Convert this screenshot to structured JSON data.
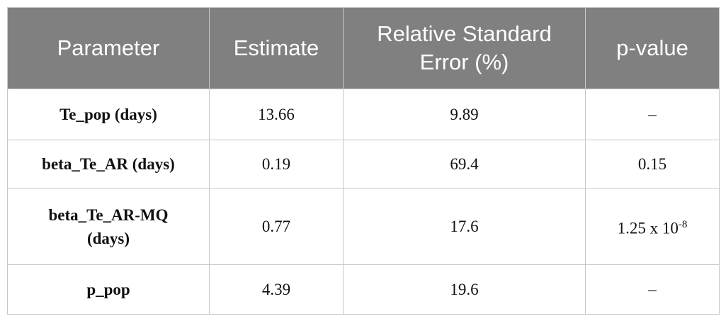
{
  "table": {
    "header": [
      "Parameter",
      "Estimate",
      "Relative Standard Error (%)",
      "p-value"
    ],
    "rows": [
      [
        "Te_pop (days)",
        "13.66",
        "9.89",
        "–"
      ],
      [
        "beta_Te_AR (days)",
        "0.19",
        "69.4",
        "0.15"
      ],
      [
        "beta_Te_AR-MQ (days)",
        "0.77",
        "17.6",
        {
          "base": "1.25 x 10",
          "exponent": "-8"
        }
      ],
      [
        "p_pop",
        "4.39",
        "19.6",
        "–"
      ]
    ]
  }
}
